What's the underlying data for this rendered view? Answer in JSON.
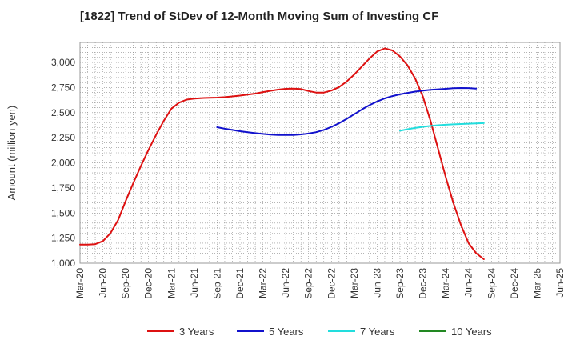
{
  "chart_data": {
    "type": "line",
    "title": "[1822]  Trend of StDev of 12-Month Moving Sum of Investing CF",
    "xlabel": "",
    "ylabel": "Amount (million yen)",
    "ylim": [
      1000,
      3200
    ],
    "yticks": [
      1000,
      1250,
      1500,
      1750,
      2000,
      2250,
      2500,
      2750,
      3000
    ],
    "ytick_labels": [
      "1,000",
      "1,250",
      "1,500",
      "1,750",
      "2,000",
      "2,250",
      "2,500",
      "2,750",
      "3,000"
    ],
    "xticks": [
      "Mar-20",
      "Jun-20",
      "Sep-20",
      "Dec-20",
      "Mar-21",
      "Jun-21",
      "Sep-21",
      "Dec-21",
      "Mar-22",
      "Jun-22",
      "Sep-22",
      "Dec-22",
      "Mar-23",
      "Jun-23",
      "Sep-23",
      "Dec-23",
      "Mar-24",
      "Jun-24",
      "Sep-24",
      "Dec-24",
      "Mar-25",
      "Jun-25"
    ],
    "grid": true,
    "legend_position": "bottom",
    "series": [
      {
        "name": "3 Years",
        "color": "#dd1111",
        "start_index": 0,
        "values": [
          1185,
          1185,
          1190,
          1220,
          1300,
          1430,
          1620,
          1800,
          1970,
          2130,
          2280,
          2420,
          2540,
          2600,
          2630,
          2640,
          2645,
          2648,
          2650,
          2655,
          2662,
          2670,
          2680,
          2690,
          2705,
          2718,
          2730,
          2738,
          2740,
          2735,
          2715,
          2700,
          2700,
          2720,
          2755,
          2810,
          2880,
          2960,
          3040,
          3110,
          3140,
          3120,
          3060,
          2970,
          2840,
          2660,
          2420,
          2140,
          1860,
          1600,
          1380,
          1200,
          1100,
          1040
        ]
      },
      {
        "name": "5 Years",
        "color": "#1111cc",
        "start_index": 18,
        "values": [
          2355,
          2340,
          2328,
          2315,
          2305,
          2296,
          2288,
          2282,
          2278,
          2277,
          2278,
          2283,
          2292,
          2306,
          2328,
          2358,
          2395,
          2438,
          2485,
          2532,
          2575,
          2612,
          2642,
          2665,
          2683,
          2697,
          2710,
          2719,
          2727,
          2733,
          2738,
          2743,
          2746,
          2745,
          2740
        ]
      },
      {
        "name": "7 Years",
        "color": "#22dddd",
        "start_index": 42,
        "values": [
          2320,
          2335,
          2348,
          2359,
          2368,
          2375,
          2380,
          2384,
          2387,
          2390,
          2393,
          2396
        ]
      },
      {
        "name": "10 Years",
        "color": "#228822",
        "start_index": 0,
        "values": []
      }
    ]
  }
}
